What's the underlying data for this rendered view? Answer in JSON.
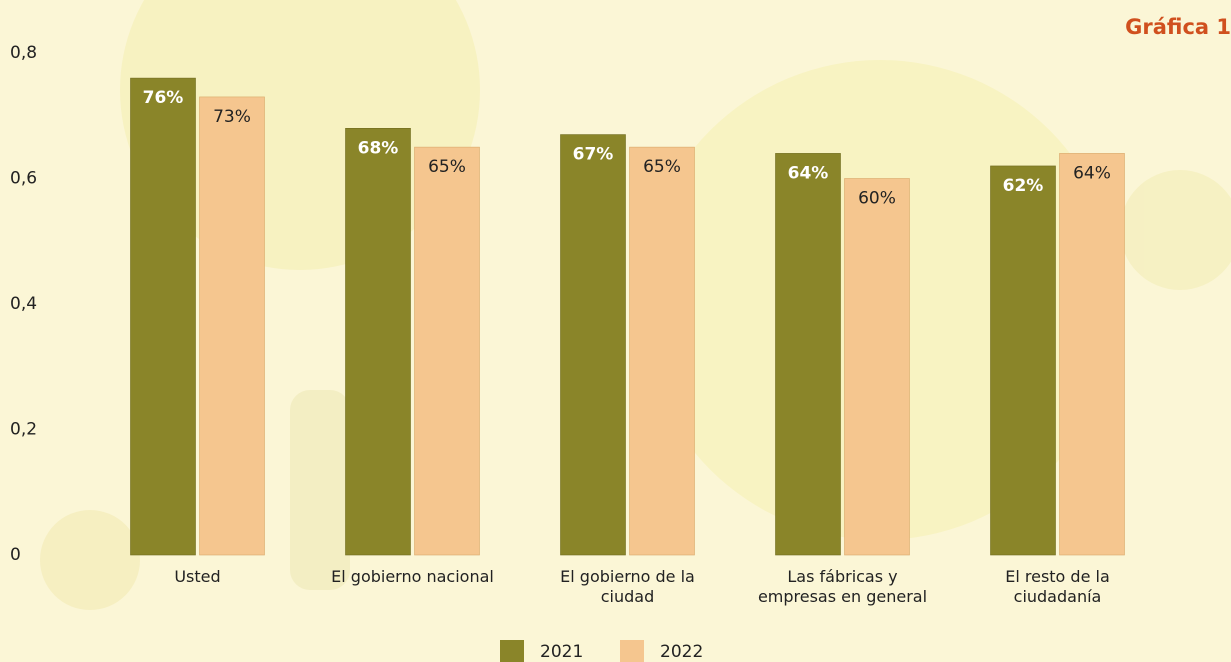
{
  "chart_data": {
    "type": "bar",
    "title": "Gráfica 1",
    "categories": [
      "Usted",
      "El gobierno nacional",
      "El gobierno de la ciudad",
      "Las fábricas y empresas en general",
      "El resto  de la ciudadanía"
    ],
    "series": [
      {
        "name": "2021",
        "color": "#8a8529",
        "values": [
          0.76,
          0.68,
          0.67,
          0.64,
          0.62
        ],
        "value_labels": [
          "76%",
          "68%",
          "67%",
          "64%",
          "62%"
        ]
      },
      {
        "name": "2022",
        "color": "#f5c68f",
        "values": [
          0.73,
          0.65,
          0.65,
          0.6,
          0.64
        ],
        "value_labels": [
          "73%",
          "65%",
          "65%",
          "60%",
          "64%"
        ]
      }
    ],
    "ylim": [
      0,
      0.8
    ],
    "yticks": [
      0,
      {
        "value": 0.2,
        "label": "0,2"
      },
      {
        "value": 0.4,
        "label": "0,4"
      },
      {
        "value": 0.6,
        "label": "0,6"
      },
      {
        "value": 0.8,
        "label": "0,8"
      }
    ],
    "grid": false
  }
}
